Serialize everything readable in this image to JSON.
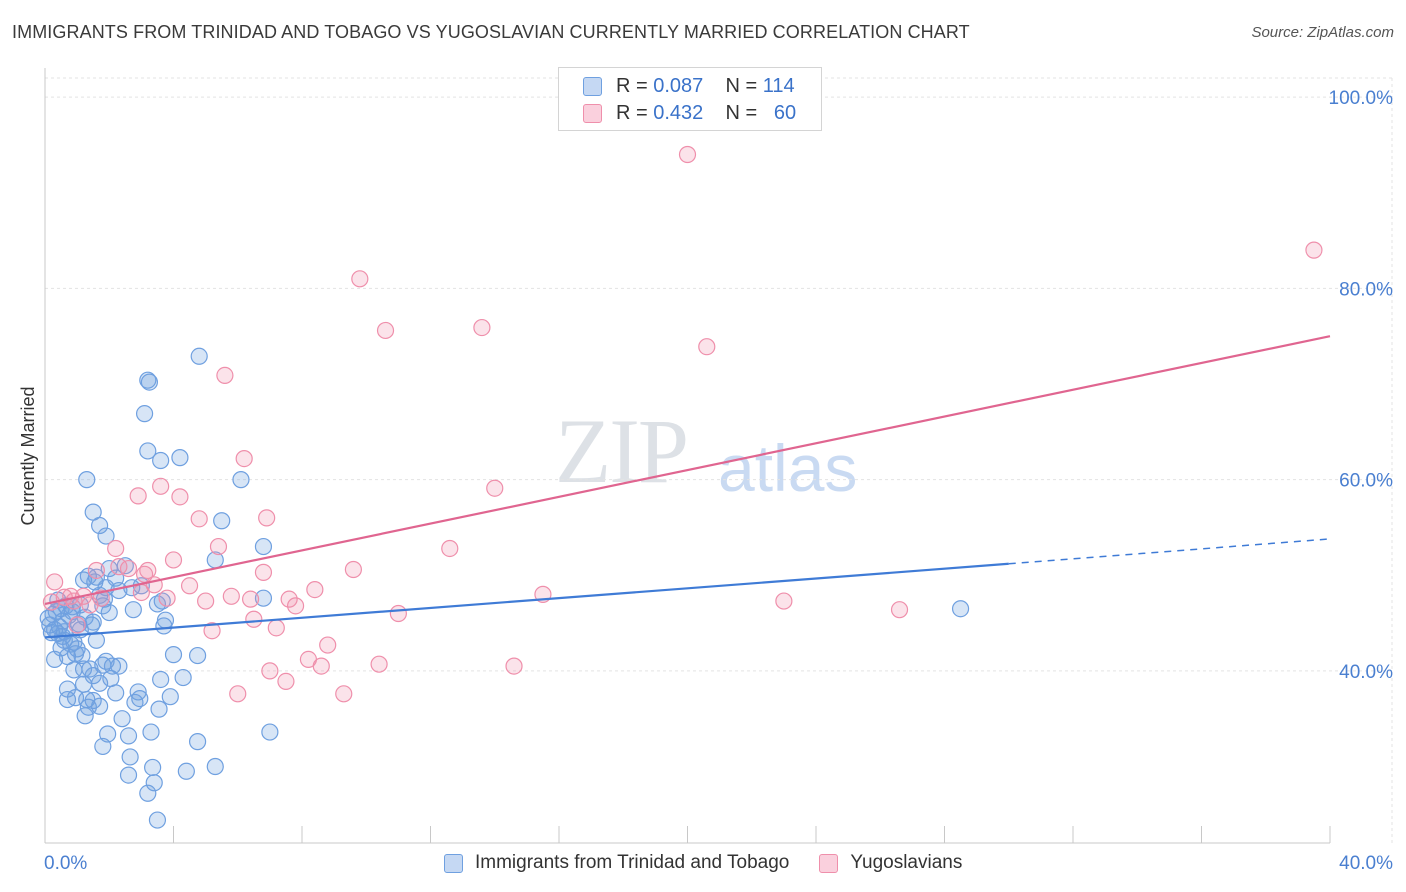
{
  "title": "IMMIGRANTS FROM TRINIDAD AND TOBAGO VS YUGOSLAVIAN CURRENTLY MARRIED CORRELATION CHART",
  "source": "Source: ZipAtlas.com",
  "watermark": {
    "zip": "ZIP",
    "atlas": "atlas"
  },
  "legend": {
    "rows": [
      {
        "r_label": "R =",
        "r_value": "0.087",
        "n_label": "N =",
        "n_value": "114",
        "color": "#6fa0e0"
      },
      {
        "r_label": "R =",
        "r_value": "0.432",
        "n_label": "N =",
        "n_value": "60",
        "color": "#ef8fab"
      }
    ]
  },
  "colors": {
    "blue": "#6fa0e0",
    "blue_line": "#3f7bd6",
    "pink": "#ef8fab",
    "pink_line": "#e06590",
    "tick_label": "#4a7fd0"
  },
  "chart_data": {
    "type": "scatter",
    "title": "IMMIGRANTS FROM TRINIDAD AND TOBAGO VS YUGOSLAVIAN CURRENTLY MARRIED CORRELATION CHART",
    "xlabel": "",
    "ylabel": "Currently Married",
    "xlim": [
      0,
      40
    ],
    "ylim": [
      22,
      102
    ],
    "x_tick_labels": [
      "0.0%",
      "40.0%"
    ],
    "y_ticks": [
      40,
      60,
      80,
      100
    ],
    "y_tick_labels": [
      "40.0%",
      "60.0%",
      "80.0%",
      "100.0%"
    ],
    "grid": true,
    "legend_position": "top-center",
    "series": [
      {
        "name": "Immigrants from Trinidad and Tobago",
        "color": "#6fa0e0",
        "trend": {
          "x": [
            0,
            30
          ],
          "y": [
            43.5,
            51.2
          ],
          "dashed_to": [
            40,
            53.8
          ]
        },
        "points": [
          [
            0.1,
            45.5
          ],
          [
            0.15,
            44.8
          ],
          [
            0.2,
            44.0
          ],
          [
            0.25,
            45.9
          ],
          [
            0.3,
            44.3
          ],
          [
            0.35,
            46.2
          ],
          [
            0.4,
            43.9
          ],
          [
            0.45,
            44.6
          ],
          [
            0.5,
            46.5
          ],
          [
            0.55,
            45.2
          ],
          [
            0.6,
            44.1
          ],
          [
            0.65,
            46.8
          ],
          [
            0.3,
            41.2
          ],
          [
            0.5,
            42.4
          ],
          [
            0.6,
            43.2
          ],
          [
            0.7,
            41.5
          ],
          [
            0.8,
            42.8
          ],
          [
            0.75,
            45.8
          ],
          [
            0.85,
            46.2
          ],
          [
            0.9,
            40.1
          ],
          [
            0.95,
            41.8
          ],
          [
            1.0,
            42.3
          ],
          [
            1.05,
            44.9
          ],
          [
            1.1,
            46.9
          ],
          [
            1.15,
            41.6
          ],
          [
            1.2,
            40.2
          ],
          [
            0.7,
            38.1
          ],
          [
            0.7,
            37.0
          ],
          [
            0.95,
            37.2
          ],
          [
            1.2,
            38.6
          ],
          [
            1.3,
            37.0
          ],
          [
            1.25,
            35.3
          ],
          [
            1.35,
            36.2
          ],
          [
            1.4,
            40.2
          ],
          [
            1.5,
            39.5
          ],
          [
            1.45,
            44.8
          ],
          [
            1.5,
            45.1
          ],
          [
            1.6,
            43.2
          ],
          [
            1.7,
            38.7
          ],
          [
            1.7,
            36.3
          ],
          [
            1.8,
            32.1
          ],
          [
            1.8,
            40.6
          ],
          [
            1.9,
            41.0
          ],
          [
            1.95,
            33.4
          ],
          [
            1.7,
            47.9
          ],
          [
            1.8,
            46.8
          ],
          [
            1.85,
            47.5
          ],
          [
            1.9,
            48.7
          ],
          [
            2.0,
            46.1
          ],
          [
            2.05,
            39.2
          ],
          [
            2.1,
            40.5
          ],
          [
            2.3,
            40.5
          ],
          [
            2.4,
            35.0
          ],
          [
            2.6,
            33.2
          ],
          [
            2.65,
            31.0
          ],
          [
            2.6,
            29.1
          ],
          [
            2.75,
            46.4
          ],
          [
            2.9,
            37.8
          ],
          [
            2.95,
            37.1
          ],
          [
            3.2,
            27.2
          ],
          [
            3.3,
            33.6
          ],
          [
            3.35,
            29.9
          ],
          [
            3.4,
            28.3
          ],
          [
            3.5,
            24.4
          ],
          [
            3.55,
            36.0
          ],
          [
            3.6,
            39.1
          ],
          [
            3.5,
            47.0
          ],
          [
            3.65,
            47.3
          ],
          [
            3.75,
            45.3
          ],
          [
            3.9,
            37.3
          ],
          [
            4.0,
            41.7
          ],
          [
            4.3,
            39.3
          ],
          [
            4.4,
            29.5
          ],
          [
            4.75,
            32.6
          ],
          [
            4.75,
            41.6
          ],
          [
            5.3,
            30.0
          ],
          [
            5.3,
            51.6
          ],
          [
            1.3,
            60.0
          ],
          [
            1.5,
            56.6
          ],
          [
            1.7,
            55.2
          ],
          [
            1.9,
            54.1
          ],
          [
            2.0,
            50.7
          ],
          [
            2.2,
            49.7
          ],
          [
            2.3,
            48.4
          ],
          [
            3.1,
            66.9
          ],
          [
            3.2,
            63.0
          ],
          [
            3.2,
            70.4
          ],
          [
            3.25,
            70.2
          ],
          [
            3.6,
            62.0
          ],
          [
            4.2,
            62.3
          ],
          [
            4.8,
            72.9
          ],
          [
            5.5,
            55.7
          ],
          [
            6.1,
            60.0
          ],
          [
            6.8,
            53.0
          ],
          [
            6.8,
            47.6
          ],
          [
            7.0,
            33.6
          ],
          [
            1.2,
            49.5
          ],
          [
            1.35,
            49.9
          ],
          [
            1.6,
            49.8
          ],
          [
            1.55,
            49.3
          ],
          [
            2.7,
            48.7
          ],
          [
            0.4,
            47.4
          ],
          [
            0.85,
            46.7
          ],
          [
            2.5,
            51.0
          ],
          [
            3.0,
            48.9
          ],
          [
            28.5,
            46.5
          ],
          [
            1.1,
            44.3
          ],
          [
            1.25,
            45.6
          ],
          [
            0.55,
            43.6
          ],
          [
            0.9,
            43.0
          ],
          [
            1.5,
            36.9
          ],
          [
            2.2,
            37.7
          ],
          [
            2.8,
            36.7
          ],
          [
            3.7,
            44.7
          ]
        ]
      },
      {
        "name": "Yugoslavians",
        "color": "#ef8fab",
        "trend": {
          "x": [
            0,
            40
          ],
          "y": [
            47.0,
            75.0
          ]
        },
        "points": [
          [
            0.2,
            47.2
          ],
          [
            0.3,
            49.3
          ],
          [
            0.6,
            47.7
          ],
          [
            0.8,
            47.8
          ],
          [
            0.9,
            47.3
          ],
          [
            1.2,
            47.8
          ],
          [
            1.4,
            46.9
          ],
          [
            1.6,
            50.5
          ],
          [
            1.75,
            47.6
          ],
          [
            2.2,
            52.8
          ],
          [
            2.3,
            50.9
          ],
          [
            2.6,
            50.7
          ],
          [
            2.9,
            58.3
          ],
          [
            3.0,
            48.2
          ],
          [
            3.1,
            50.1
          ],
          [
            3.2,
            50.5
          ],
          [
            3.6,
            59.3
          ],
          [
            3.8,
            47.6
          ],
          [
            4.0,
            51.6
          ],
          [
            4.2,
            58.2
          ],
          [
            4.5,
            48.9
          ],
          [
            4.8,
            55.9
          ],
          [
            5.0,
            47.3
          ],
          [
            5.2,
            44.2
          ],
          [
            5.4,
            53.0
          ],
          [
            5.6,
            70.9
          ],
          [
            5.8,
            47.8
          ],
          [
            6.0,
            37.6
          ],
          [
            6.2,
            62.2
          ],
          [
            6.4,
            47.5
          ],
          [
            6.5,
            45.4
          ],
          [
            6.8,
            50.3
          ],
          [
            7.0,
            40.0
          ],
          [
            7.2,
            44.5
          ],
          [
            7.5,
            38.9
          ],
          [
            7.6,
            47.5
          ],
          [
            7.8,
            46.8
          ],
          [
            8.2,
            41.2
          ],
          [
            8.4,
            48.5
          ],
          [
            8.6,
            40.5
          ],
          [
            8.8,
            42.7
          ],
          [
            9.3,
            37.6
          ],
          [
            9.6,
            50.6
          ],
          [
            9.8,
            81.0
          ],
          [
            10.4,
            40.7
          ],
          [
            10.6,
            75.6
          ],
          [
            11.0,
            46.0
          ],
          [
            12.6,
            52.8
          ],
          [
            13.6,
            75.9
          ],
          [
            14.0,
            59.1
          ],
          [
            14.6,
            40.5
          ],
          [
            15.5,
            48.0
          ],
          [
            20.0,
            94.0
          ],
          [
            20.6,
            73.9
          ],
          [
            23.0,
            47.3
          ],
          [
            26.6,
            46.4
          ],
          [
            39.5,
            84.0
          ],
          [
            6.9,
            56.0
          ],
          [
            3.4,
            49.0
          ],
          [
            1.0,
            44.8
          ]
        ]
      }
    ]
  }
}
